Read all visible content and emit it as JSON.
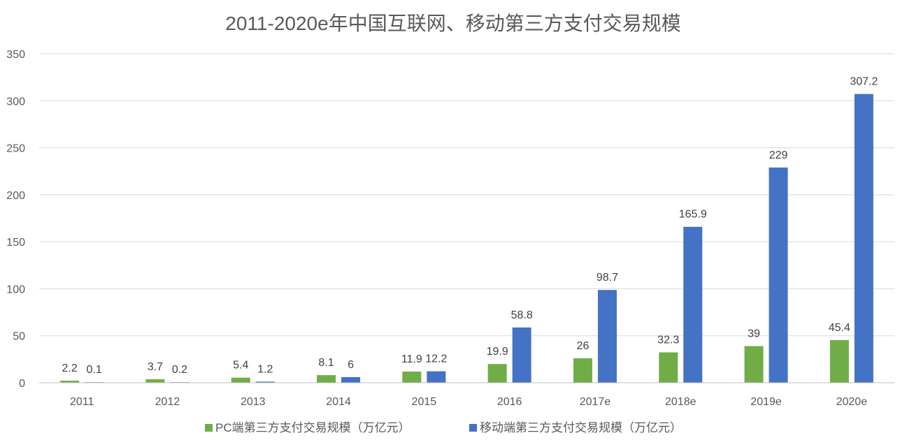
{
  "chart_data": {
    "type": "bar",
    "title": "2011-2020e年中国互联网、移动第三方支付交易规模",
    "categories": [
      "2011",
      "2012",
      "2013",
      "2014",
      "2015",
      "2016",
      "2017e",
      "2018e",
      "2019e",
      "2020e"
    ],
    "series": [
      {
        "name": "PC端第三方支付交易规模（万亿元）",
        "color": "#70ad47",
        "values": [
          2.2,
          3.7,
          5.4,
          8.1,
          11.9,
          19.9,
          26,
          32.3,
          39,
          45.4
        ],
        "labels": [
          "2.2",
          "3.7",
          "5.4",
          "8.1",
          "11.9",
          "19.9",
          "26",
          "32.3",
          "39",
          "45.4"
        ]
      },
      {
        "name": "移动端第三方支付交易规模（万亿元）",
        "color": "#4472c4",
        "values": [
          0.1,
          0.2,
          1.2,
          6,
          12.2,
          58.8,
          98.7,
          165.9,
          229,
          307.2
        ],
        "labels": [
          "0.1",
          "0.2",
          "1.2",
          "6",
          "12.2",
          "58.8",
          "98.7",
          "165.9",
          "229",
          "307.2"
        ]
      }
    ],
    "ylim": [
      0,
      350
    ],
    "yticks": [
      0,
      50,
      100,
      150,
      200,
      250,
      300,
      350
    ],
    "ytick_labels": [
      "0",
      "50",
      "100",
      "150",
      "200",
      "250",
      "300",
      "350"
    ],
    "grid": true,
    "legend_position": "bottom"
  }
}
